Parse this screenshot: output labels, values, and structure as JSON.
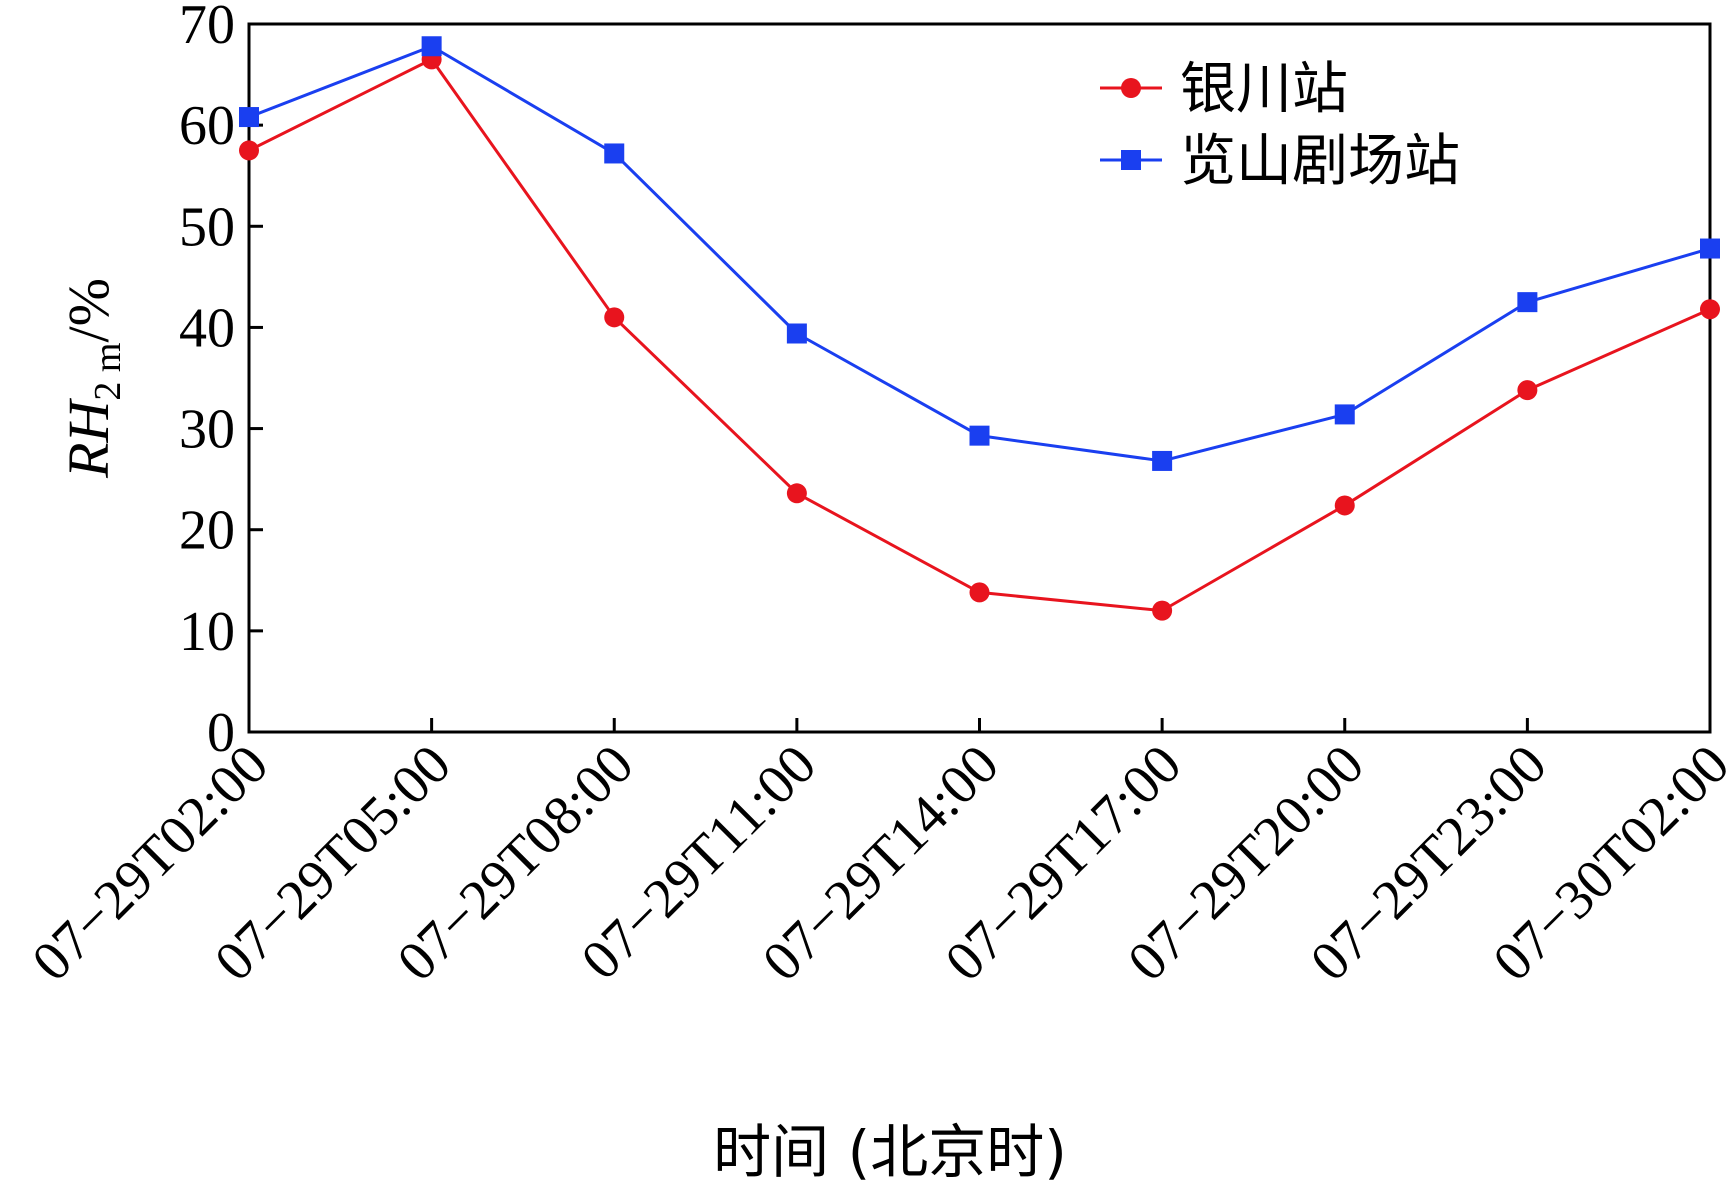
{
  "chart_data": {
    "type": "line",
    "categories": [
      "07−29T02:00",
      "07−29T05:00",
      "07−29T08:00",
      "07−29T11:00",
      "07−29T14:00",
      "07−29T17:00",
      "07−29T20:00",
      "07−29T23:00",
      "07−30T02:00"
    ],
    "series": [
      {
        "name": "银川站",
        "color": "#e8141e",
        "marker": "circle",
        "values": [
          57.5,
          66.5,
          41.0,
          23.6,
          13.8,
          12.0,
          22.4,
          33.8,
          41.8
        ]
      },
      {
        "name": "览山剧场站",
        "color": "#1a3ff0",
        "marker": "square",
        "values": [
          60.8,
          67.8,
          57.2,
          39.4,
          29.3,
          26.8,
          31.4,
          42.5,
          47.8
        ]
      }
    ],
    "xlabel": "时间 (北京时)",
    "ylabel": {
      "main": "RH",
      "subscript": "2 m",
      "suffix": "/%"
    },
    "ylim": [
      0,
      70
    ],
    "yticks": [
      "0",
      "10",
      "20",
      "30",
      "40",
      "50",
      "60",
      "70"
    ],
    "grid": false,
    "legend_position": "top-right"
  }
}
